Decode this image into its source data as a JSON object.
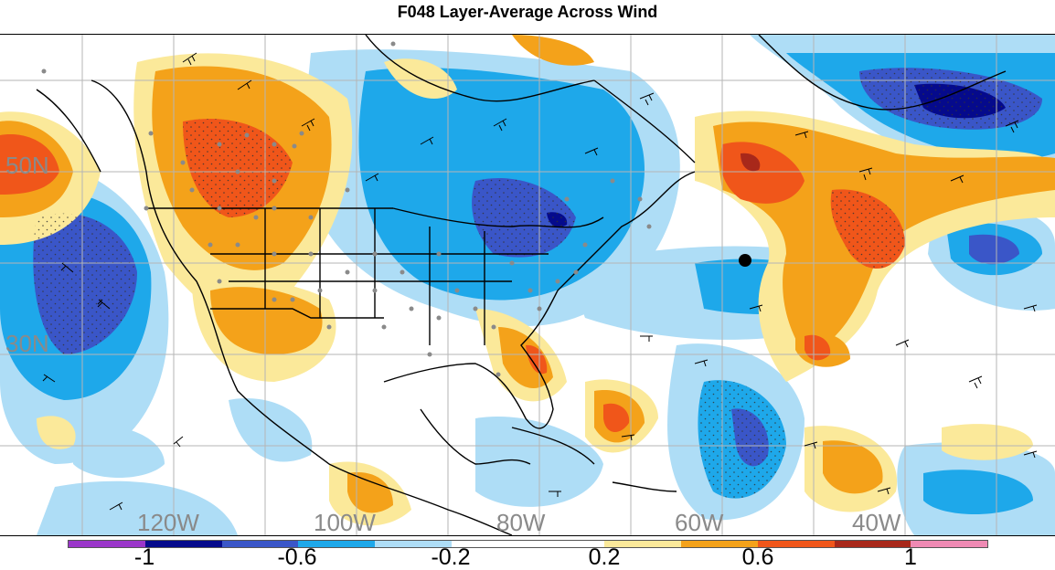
{
  "title": "F048 Layer-Average Across Wind",
  "map": {
    "latitude_labels": [
      "50N",
      "30N"
    ],
    "longitude_labels": [
      "120W",
      "100W",
      "80W",
      "60W",
      "40W"
    ]
  },
  "colorbar": {
    "labels": [
      "-1",
      "-0.6",
      "-0.2",
      "0.2",
      "0.6",
      "1"
    ],
    "colors": [
      "#9a36c9",
      "#050a8c",
      "#3a56c8",
      "#1ea8ea",
      "#aeddf6",
      "#ffffff",
      "#ffffff",
      "#fbe99a",
      "#f4a21a",
      "#f0561a",
      "#a8281a",
      "#ef8ab4"
    ]
  }
}
